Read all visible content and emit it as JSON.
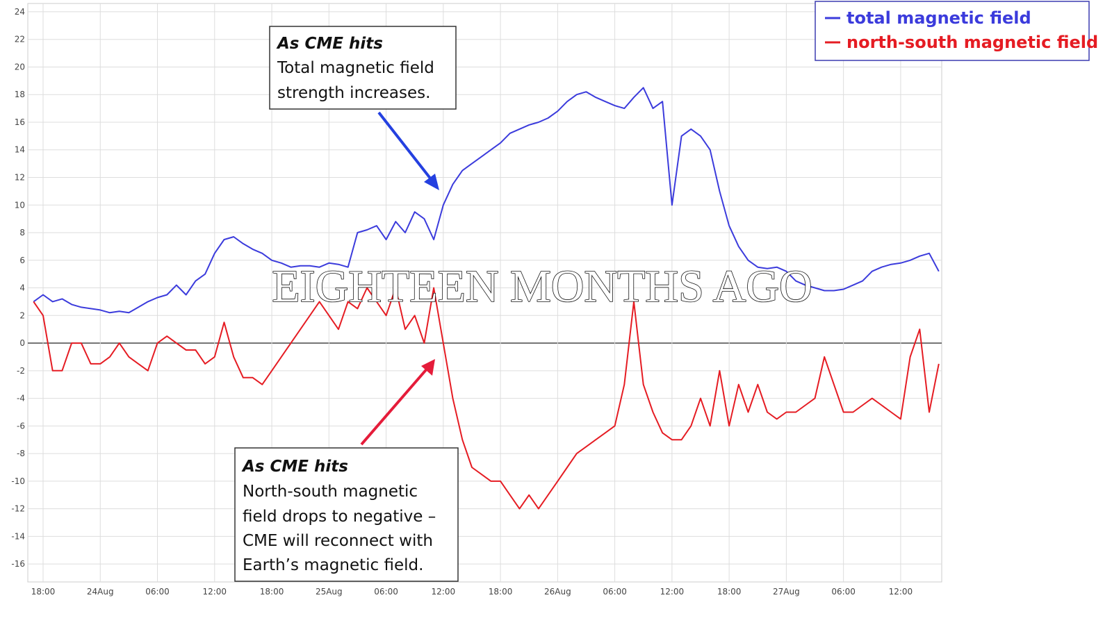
{
  "chart_data": {
    "type": "line",
    "categories": [
      null,
      "18:00",
      null,
      null,
      null,
      null,
      null,
      "24Aug",
      null,
      null,
      null,
      null,
      null,
      "06:00",
      null,
      null,
      null,
      null,
      null,
      "12:00",
      null,
      null,
      null,
      null,
      null,
      "18:00",
      null,
      null,
      null,
      null,
      null,
      "25Aug",
      null,
      null,
      null,
      null,
      null,
      "06:00",
      null,
      null,
      null,
      null,
      null,
      "12:00",
      null,
      null,
      null,
      null,
      null,
      "18:00",
      null,
      null,
      null,
      null,
      null,
      "26Aug",
      null,
      null,
      null,
      null,
      null,
      "06:00",
      null,
      null,
      null,
      null,
      null,
      "12:00",
      null,
      null,
      null,
      null,
      null,
      "18:00",
      null,
      null,
      null,
      null,
      null,
      "27Aug",
      null,
      null,
      null,
      null,
      null,
      "06:00",
      null,
      null,
      null,
      null,
      null,
      "12:00",
      null,
      null,
      null,
      null
    ],
    "series": [
      {
        "name": "total magnetic field",
        "color": "#3b3bdc",
        "values": [
          3,
          3.5,
          3,
          3.2,
          2.8,
          2.6,
          2.5,
          2.4,
          2.2,
          2.3,
          2.2,
          2.6,
          3,
          3.3,
          3.5,
          4.2,
          3.5,
          4.5,
          5,
          6.5,
          7.5,
          7.7,
          7.2,
          6.8,
          6.5,
          6,
          5.8,
          5.5,
          5.6,
          5.6,
          5.5,
          5.8,
          5.7,
          5.5,
          8,
          8.2,
          8.5,
          7.5,
          8.8,
          8,
          9.5,
          9,
          7.5,
          10,
          11.5,
          12.5,
          13,
          13.5,
          14,
          14.5,
          15.2,
          15.5,
          15.8,
          16,
          16.3,
          16.8,
          17.5,
          18,
          18.2,
          17.8,
          17.5,
          17.2,
          17,
          17.8,
          18.5,
          17,
          17.5,
          10,
          15,
          15.5,
          15,
          14,
          11,
          8.5,
          7,
          6,
          5.5,
          5.4,
          5.5,
          5.2,
          4.5,
          4.2,
          4,
          3.8,
          3.8,
          3.9,
          4.2,
          4.5,
          5.2,
          5.5,
          5.7,
          5.8,
          6,
          6.3,
          6.5,
          5.2
        ]
      },
      {
        "name": "north-south magnetic field",
        "color": "#e51c23",
        "values": [
          3,
          2,
          -2,
          -2,
          0,
          0,
          -1.5,
          -1.5,
          -1,
          0,
          -1,
          -1.5,
          -2,
          0,
          0.5,
          0,
          -0.5,
          -0.5,
          -1.5,
          -1,
          1.5,
          -1,
          -2.5,
          -2.5,
          -3,
          -2,
          -1,
          0,
          1,
          2,
          3,
          2,
          1,
          3,
          2.5,
          4,
          3,
          2,
          4,
          1,
          2,
          0,
          4,
          0,
          -4,
          -7,
          -9,
          -9.5,
          -10,
          -10,
          -11,
          -12,
          -11,
          -12,
          -11,
          -10,
          -9,
          -8,
          -7.5,
          -7,
          -6.5,
          -6,
          -3,
          3,
          -3,
          -5,
          -6.5,
          -7,
          -7,
          -6,
          -4,
          -6,
          -2,
          -6,
          -3,
          -5,
          -3,
          -5,
          -5.5,
          -5,
          -5,
          -4.5,
          -4,
          -1,
          -3,
          -5,
          -5,
          -4.5,
          -4,
          -4.5,
          -5,
          -5.5,
          -1,
          1,
          -5,
          -1.5
        ]
      }
    ],
    "ylim": [
      -17.3,
      24.6
    ],
    "yticks": [
      -16,
      -14,
      -12,
      -10,
      -8,
      -6,
      -4,
      -2,
      0,
      2,
      4,
      6,
      8,
      10,
      12,
      14,
      16,
      18,
      20,
      22,
      24
    ],
    "grid": true,
    "legend": "upper right",
    "annotations": [
      {
        "title": "As CME hits",
        "lines": [
          "Total magnetic field",
          "strength increases."
        ]
      },
      {
        "title": "As CME hits",
        "lines": [
          "North-south magnetic",
          "field drops to negative –",
          "CME will reconnect with",
          "Earth’s magnetic field."
        ]
      }
    ],
    "overlay_text": "EIGHTEEN MONTHS AGO"
  }
}
